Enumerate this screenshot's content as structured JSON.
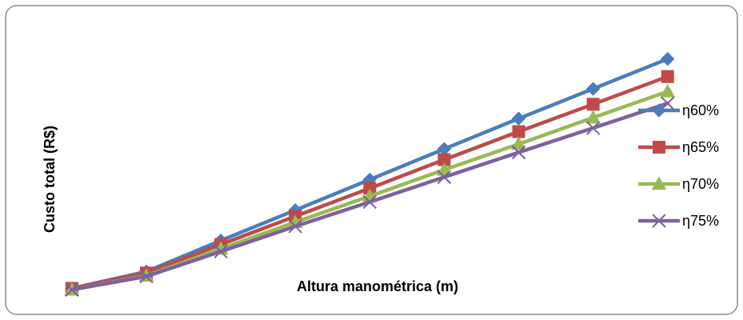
{
  "chart_data": {
    "type": "line",
    "title": "",
    "xlabel": "Altura manométrica (m)",
    "ylabel": "Custo total  (R$)",
    "x": [
      1,
      2,
      3,
      4,
      5,
      6,
      7,
      8,
      9
    ],
    "xlim": [
      0.4,
      9.4
    ],
    "ylim": [
      -1.4,
      16.8
    ],
    "grid": false,
    "legend": "right",
    "series": [
      {
        "name": "η60%",
        "color": "#4a7ebb",
        "marker": "diamond",
        "values": [
          0.0,
          1.07,
          3.04,
          4.97,
          6.91,
          8.86,
          10.79,
          12.68,
          14.58
        ]
      },
      {
        "name": "η65%",
        "color": "#be4b48",
        "marker": "square",
        "values": [
          0.0,
          0.98,
          2.79,
          4.58,
          6.36,
          8.18,
          9.96,
          11.7,
          13.46
        ]
      },
      {
        "name": "η70%",
        "color": "#98b954",
        "marker": "triangle",
        "values": [
          -0.09,
          0.8,
          2.52,
          4.2,
          5.86,
          7.53,
          9.17,
          10.85,
          12.51
        ]
      },
      {
        "name": "η75%",
        "color": "#7d60a0",
        "marker": "x",
        "values": [
          -0.09,
          0.76,
          2.34,
          3.94,
          5.49,
          7.07,
          8.64,
          10.19,
          11.76
        ]
      }
    ]
  }
}
